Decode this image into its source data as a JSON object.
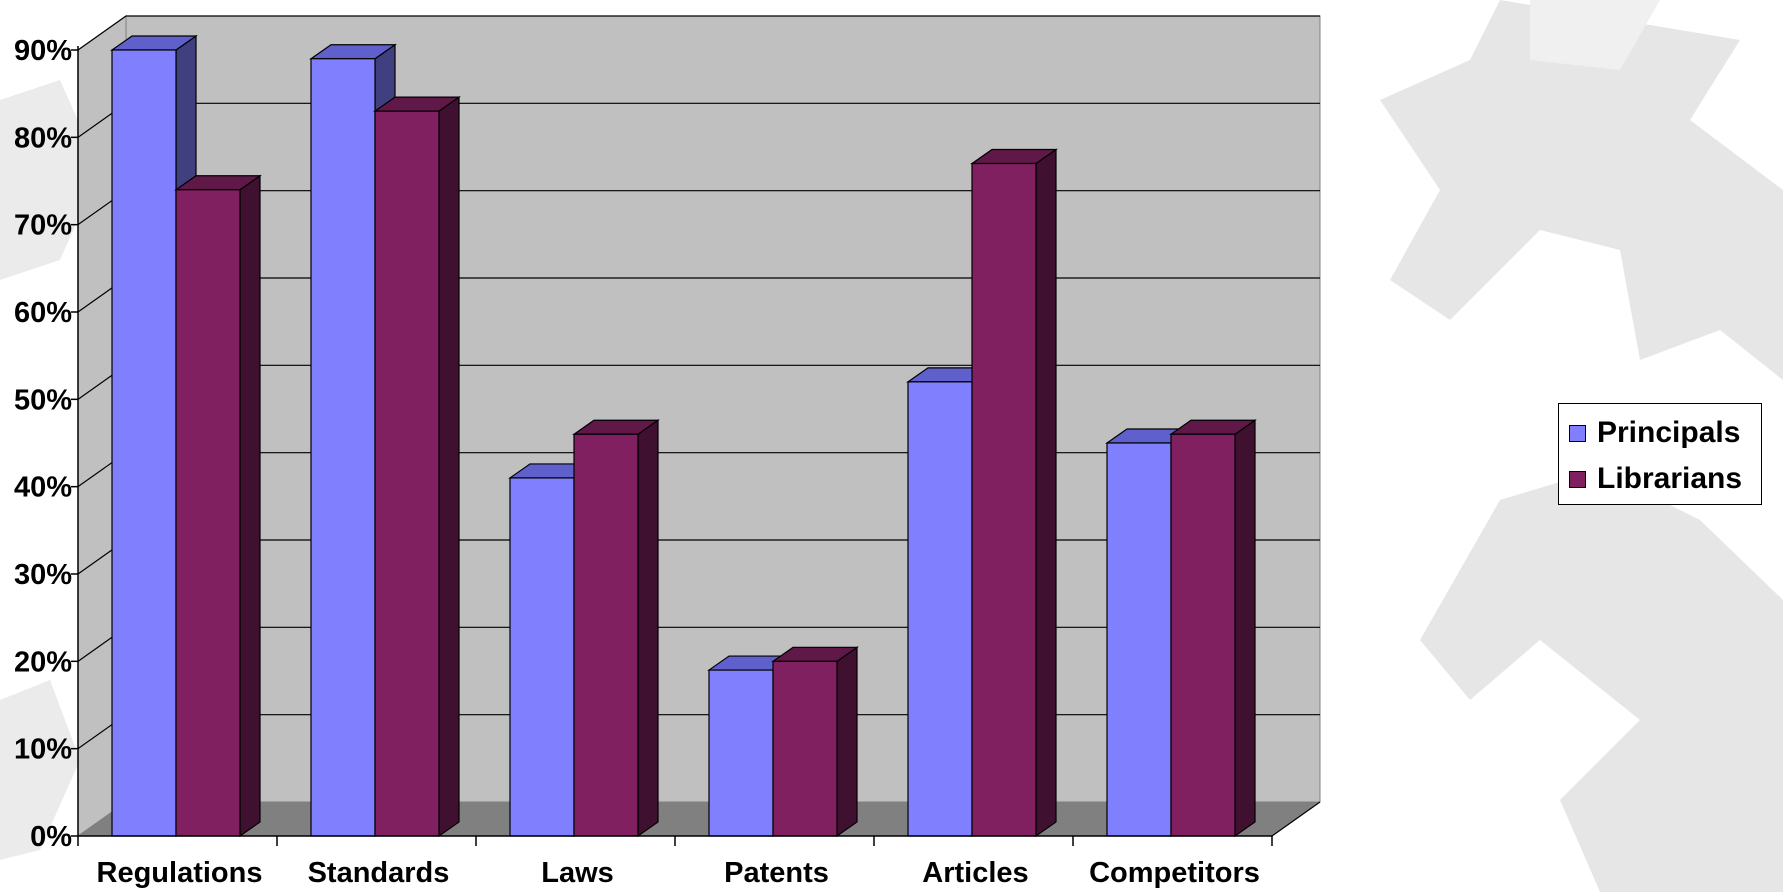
{
  "chart_data": {
    "type": "bar",
    "title": "",
    "xlabel": "",
    "ylabel": "",
    "categories": [
      "Regulations",
      "Standards",
      "Laws",
      "Patents",
      "Articles",
      "Competitors"
    ],
    "series": [
      {
        "name": "Principals",
        "values": [
          90,
          89,
          41,
          19,
          52,
          45
        ],
        "color": "#8080FF"
      },
      {
        "name": "Librarians",
        "values": [
          74,
          83,
          46,
          20,
          77,
          46
        ],
        "color": "#802060"
      }
    ],
    "yticks": [
      "0%",
      "10%",
      "20%",
      "30%",
      "40%",
      "50%",
      "60%",
      "70%",
      "80%",
      "90%"
    ],
    "ylim": [
      0,
      90
    ],
    "grid": true,
    "legend_position": "right",
    "style": "3d-clustered-column"
  },
  "colors": {
    "wall": "#C0C0C0",
    "floor": "#808080",
    "principals_top": "#6060CC",
    "principals_side": "#404080",
    "librarians_top": "#601848",
    "librarians_side": "#401030"
  }
}
